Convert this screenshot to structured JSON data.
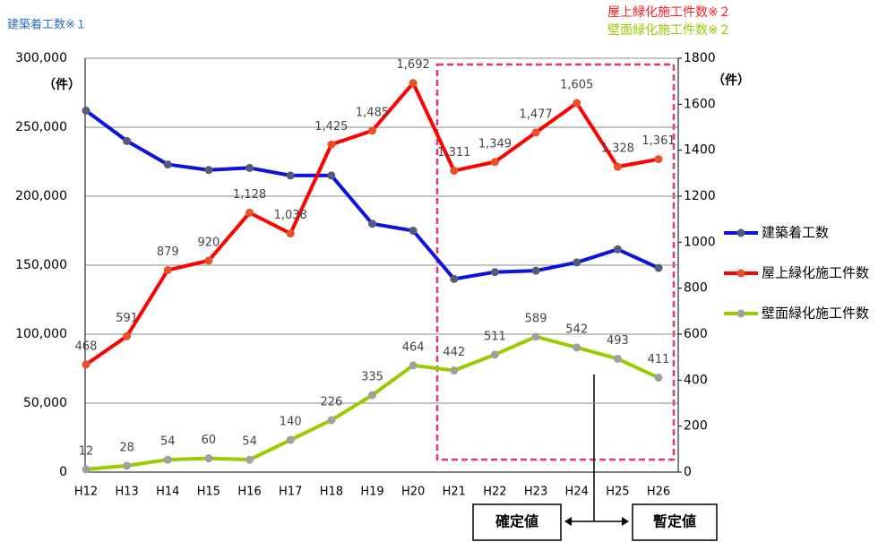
{
  "chart_data": {
    "type": "line",
    "categories": [
      "H12",
      "H13",
      "H14",
      "H15",
      "H16",
      "H17",
      "H18",
      "H19",
      "H20",
      "H21",
      "H22",
      "H23",
      "H24",
      "H25",
      "H26"
    ],
    "series": [
      {
        "name": "建築着工数",
        "color": "#0a14dc",
        "marker_color": "#555a78",
        "values": [
          262000,
          240000,
          223000,
          219000,
          220500,
          215000,
          215000,
          180000,
          175000,
          140000,
          145000,
          146000,
          152000,
          161500,
          148000
        ]
      },
      {
        "name": "屋上緑化施工件数",
        "color": "#ff0000",
        "marker_color": "#e8502a",
        "axis": "y2",
        "values": [
          468,
          591,
          879,
          920,
          1128,
          1038,
          1425,
          1485,
          1692,
          1311,
          1349,
          1477,
          1605,
          1328,
          1361
        ],
        "value_labels": [
          "468",
          "591",
          "879",
          "920",
          "1,128",
          "1,038",
          "1,425",
          "1,485",
          "1,692",
          "1,311",
          "1,349",
          "1,477",
          "1,605",
          "1,328",
          "1,361"
        ]
      },
      {
        "name": "壁面緑化施工件数",
        "color": "#99cc00",
        "marker_color": "#a0a0a0",
        "axis": "y2",
        "values": [
          12,
          28,
          54,
          60,
          54,
          140,
          226,
          335,
          464,
          442,
          511,
          589,
          542,
          493,
          411
        ]
      }
    ],
    "ylim": [
      0,
      300000
    ],
    "yticks": [
      0,
      {
        "value": 50000,
        "label": "50,000"
      },
      {
        "value": 100000,
        "label": "100,000"
      },
      {
        "value": 150000,
        "label": "150,000"
      },
      {
        "value": 200000,
        "label": "200,000"
      },
      {
        "value": 250000,
        "label": "250,000"
      },
      {
        "value": 300000,
        "label": "300,000"
      }
    ],
    "y2lim": [
      0,
      1800
    ],
    "y2ticks": [
      0,
      200,
      400,
      600,
      800,
      1000,
      1200,
      1400,
      1600,
      1800
    ],
    "ylabel": "（件）",
    "y2label": "（件）",
    "grid": true,
    "legend": "right",
    "annotations": [
      "建築着工数※１",
      "屋上緑化施工件数※２",
      "壁面緑化施工件数※２",
      "確定値",
      "暫定値"
    ]
  }
}
